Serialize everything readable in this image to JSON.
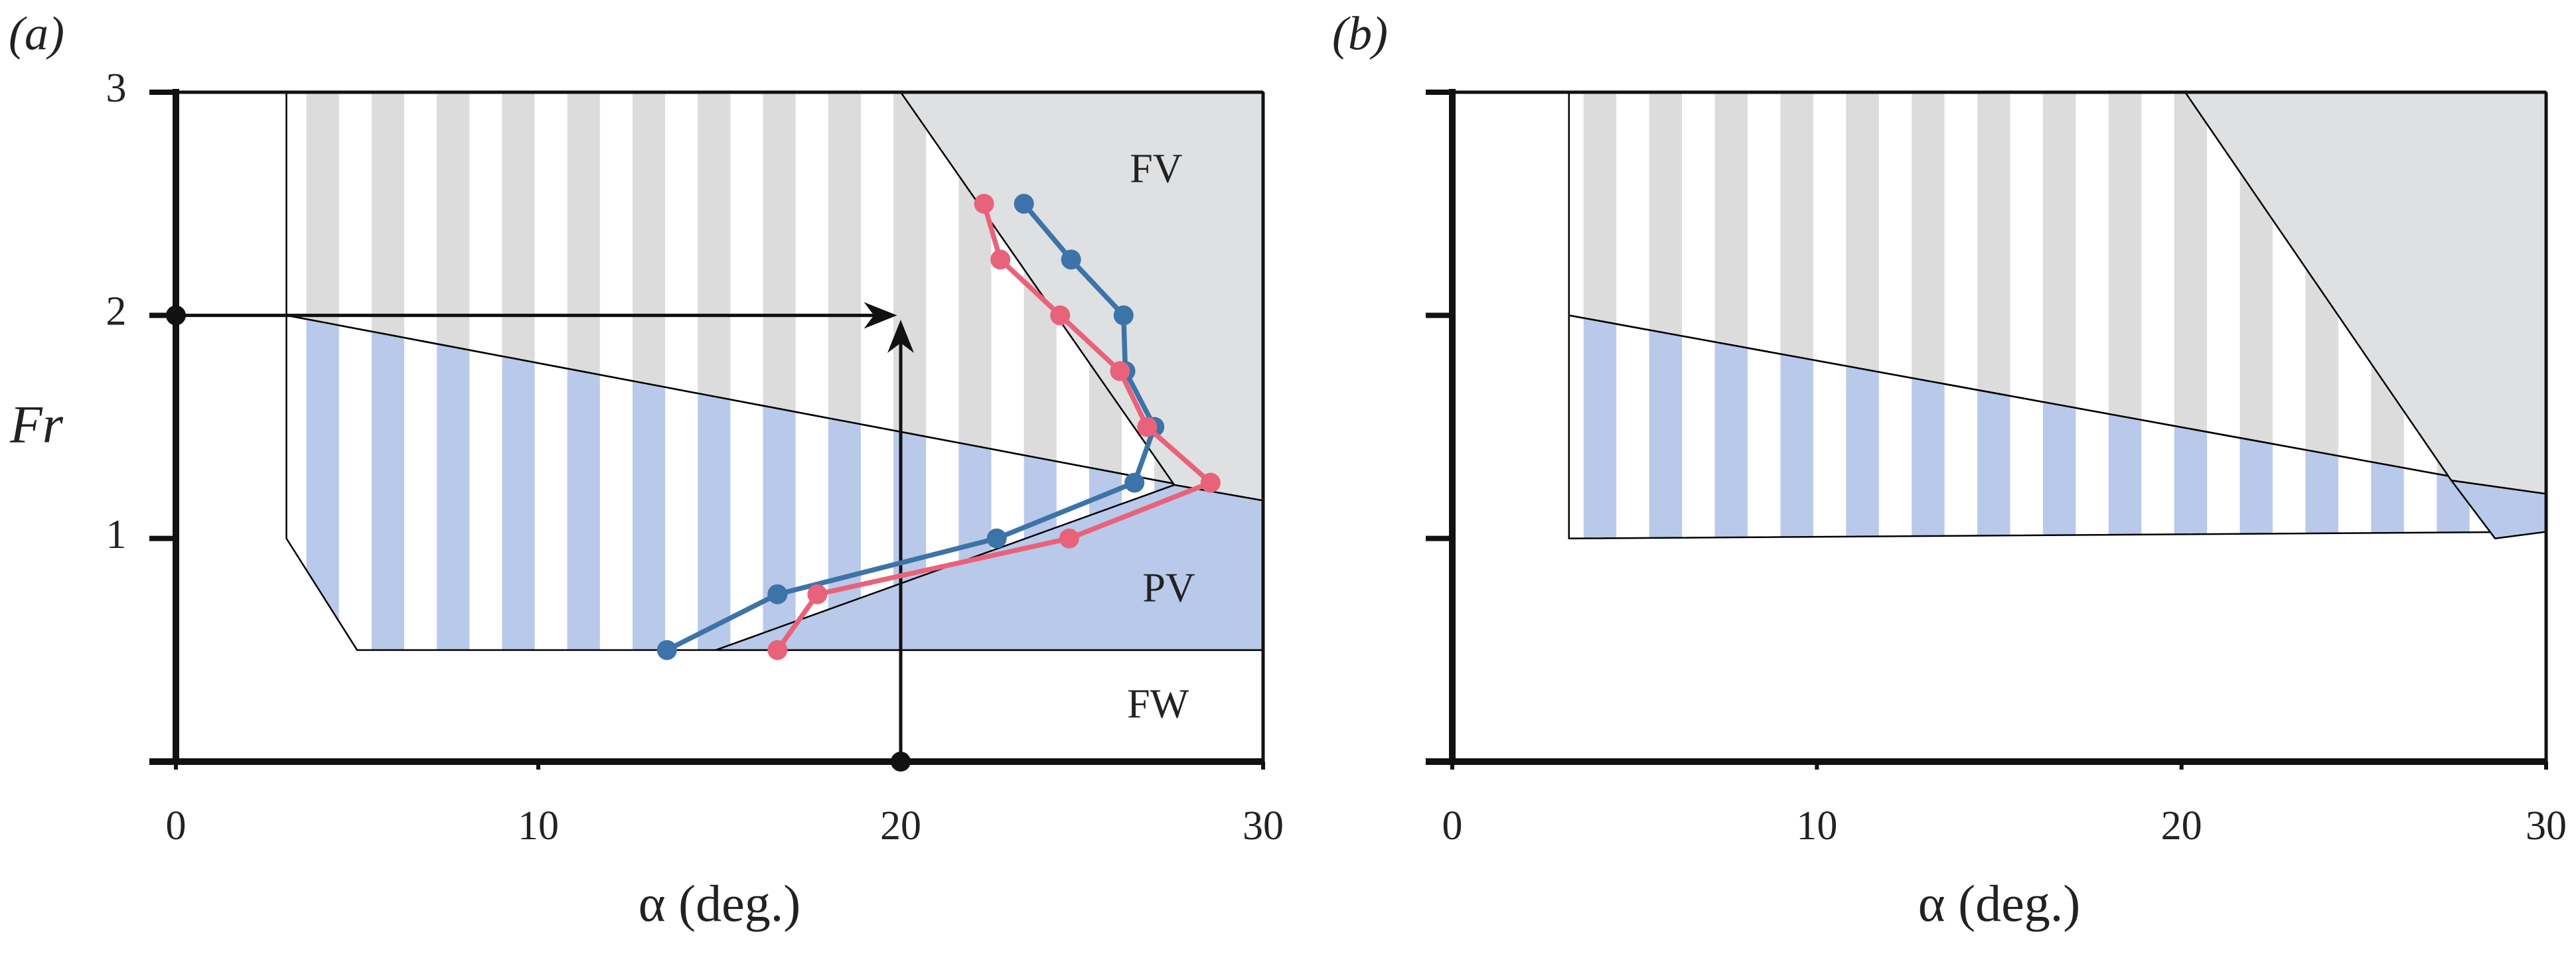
{
  "chart_data": [
    {
      "type": "line",
      "panel_label": "(a)",
      "xlabel": "α (deg.)",
      "ylabel": "Fr",
      "xlim": [
        0,
        30
      ],
      "ylim": [
        0,
        3
      ],
      "xticks": [
        0,
        10,
        20,
        30
      ],
      "yticks": [
        1,
        2,
        3
      ],
      "ytick_labels": true,
      "regions": [
        {
          "style": "stripes",
          "color": "#dcdcdc",
          "stripes": [
            3.6,
            0.9,
            1.8
          ],
          "points": [
            [
              3.05,
              3
            ],
            [
              30,
              3
            ],
            [
              30,
              1.17
            ],
            [
              3.05,
              2.0
            ]
          ]
        },
        {
          "style": "stripes",
          "color": "#b9c9e9",
          "stripes": [
            3.6,
            0.9,
            1.8
          ],
          "points": [
            [
              3.05,
              2.0
            ],
            [
              30,
              1.17
            ],
            [
              30,
              0.5
            ],
            [
              5.0,
              0.5
            ],
            [
              3.05,
              1.0
            ]
          ]
        },
        {
          "style": "solid",
          "color": "#dfe0e2",
          "points": [
            [
              20,
              3
            ],
            [
              30,
              3
            ],
            [
              30,
              1.17
            ],
            [
              27.55,
              1.24
            ]
          ]
        },
        {
          "style": "solid",
          "color": "#b9c9e9",
          "points": [
            [
              14.9,
              0.5
            ],
            [
              30,
              0.5
            ],
            [
              30,
              1.17
            ],
            [
              27.55,
              1.24
            ]
          ]
        }
      ],
      "arrows": [
        {
          "from": [
            0,
            2
          ],
          "to": [
            19.9,
            2
          ]
        },
        {
          "from": [
            20,
            0
          ],
          "to": [
            20,
            1.98
          ]
        }
      ],
      "series": [
        {
          "color": "#3c73a9",
          "x": [
            13.55,
            16.6,
            22.65,
            26.45,
            27.0,
            26.2,
            26.15,
            24.7,
            23.4
          ],
          "values": [
            0.5,
            0.75,
            1.0,
            1.25,
            1.5,
            1.75,
            2.0,
            2.25,
            2.5
          ]
        },
        {
          "color": "#e8637a",
          "x": [
            16.6,
            17.7,
            24.65,
            28.55,
            26.8,
            26.05,
            24.4,
            22.75,
            22.3
          ],
          "values": [
            0.5,
            0.75,
            1.0,
            1.25,
            1.5,
            1.75,
            2.0,
            2.25,
            2.5
          ]
        }
      ],
      "annotations": [
        {
          "text": "FV",
          "x": 27.05,
          "y": 2.64
        },
        {
          "text": "PV",
          "x": 27.4,
          "y": 0.76
        },
        {
          "text": "FW",
          "x": 27.1,
          "y": 0.24
        }
      ]
    },
    {
      "type": "region",
      "panel_label": "(b)",
      "xlabel": "α (deg.)",
      "xlim": [
        0,
        30
      ],
      "ylim": [
        0,
        3
      ],
      "xticks": [
        0,
        10,
        20,
        30
      ],
      "yticks": [
        1,
        2,
        3
      ],
      "ytick_labels": false,
      "regions": [
        {
          "style": "stripes",
          "color": "#dcdcdc",
          "stripes": [
            3.6,
            0.9,
            1.8
          ],
          "points": [
            [
              3.2,
              3
            ],
            [
              30,
              3
            ],
            [
              30,
              1.2
            ],
            [
              3.2,
              2.0
            ]
          ]
        },
        {
          "style": "stripes",
          "color": "#b9c9e9",
          "stripes": [
            3.6,
            0.9,
            1.8
          ],
          "points": [
            [
              3.2,
              2.0
            ],
            [
              30,
              1.2
            ],
            [
              30,
              1.03
            ],
            [
              3.2,
              1.0
            ]
          ]
        },
        {
          "style": "solid",
          "color": "#dfe0e2",
          "points": [
            [
              20.1,
              3
            ],
            [
              30,
              3
            ],
            [
              30,
              1.2
            ],
            [
              27.4,
              1.26
            ]
          ]
        },
        {
          "style": "solid",
          "color": "#b9c9e9",
          "points": [
            [
              27.4,
              1.26
            ],
            [
              30,
              1.2
            ],
            [
              30,
              1.03
            ],
            [
              28.6,
              1.0
            ]
          ]
        }
      ]
    }
  ]
}
